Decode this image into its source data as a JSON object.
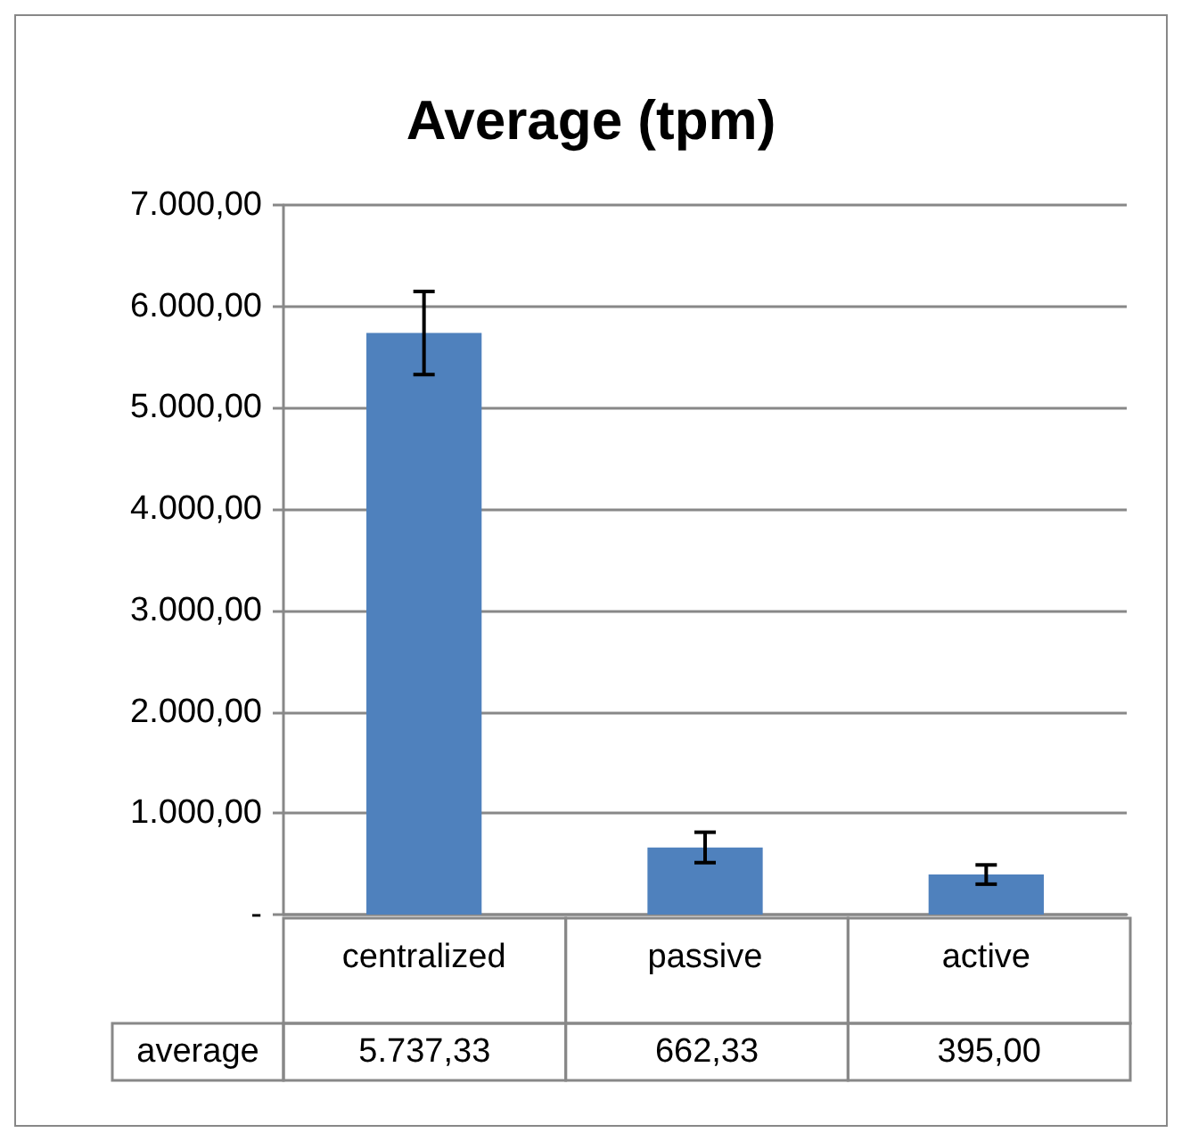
{
  "chart_data": {
    "type": "bar",
    "title": "Average (tpm)",
    "categories": [
      "centralized",
      "passive",
      "active"
    ],
    "series": [
      {
        "name": "average",
        "color": "#4f81bd",
        "values": [
          5737.33,
          662.33,
          395.0
        ],
        "errors": [
          410,
          150,
          95
        ],
        "value_labels": [
          "5.737,33",
          "662,33",
          "395,00"
        ]
      }
    ],
    "ylim": [
      0,
      7000
    ],
    "yticks": [
      {
        "value": 0,
        "label": "-"
      },
      {
        "value": 1000,
        "label": "1.000,00"
      },
      {
        "value": 2000,
        "label": "2.000,00"
      },
      {
        "value": 3000,
        "label": "3.000,00"
      },
      {
        "value": 4000,
        "label": "4.000,00"
      },
      {
        "value": 5000,
        "label": "5.000,00"
      },
      {
        "value": 6000,
        "label": "6.000,00"
      },
      {
        "value": 7000,
        "label": "7.000,00"
      }
    ],
    "grid": "y",
    "legend": false
  }
}
